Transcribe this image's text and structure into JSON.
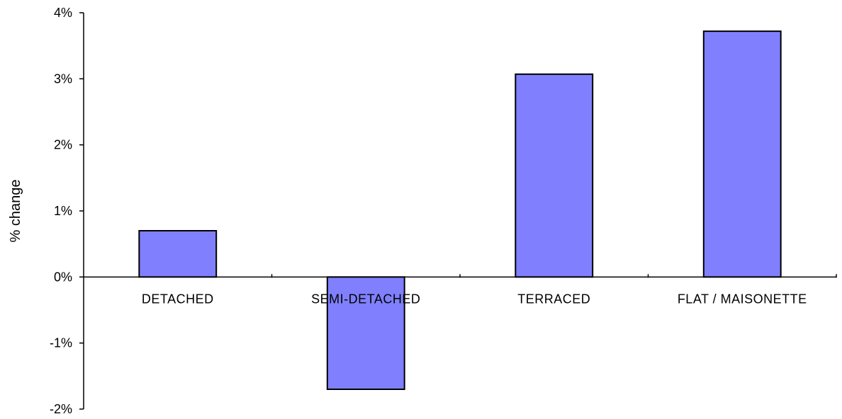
{
  "chart_data": {
    "type": "bar",
    "categories": [
      "DETACHED",
      "SEMI-DETACHED",
      "TERRACED",
      "FLAT / MAISONETTE"
    ],
    "values": [
      0.7,
      -1.7,
      3.07,
      3.72
    ],
    "ylabel": "% change",
    "ylim": [
      -2,
      4
    ],
    "yticks": [
      4,
      3,
      2,
      1,
      0,
      -1,
      -2
    ],
    "ytick_labels": [
      "4%",
      "3%",
      "2%",
      "1%",
      "0%",
      "-1%",
      "-2%"
    ],
    "grid": false,
    "legend": "none",
    "bar_color": "#8080ff",
    "bar_edge_color": "#000000"
  }
}
